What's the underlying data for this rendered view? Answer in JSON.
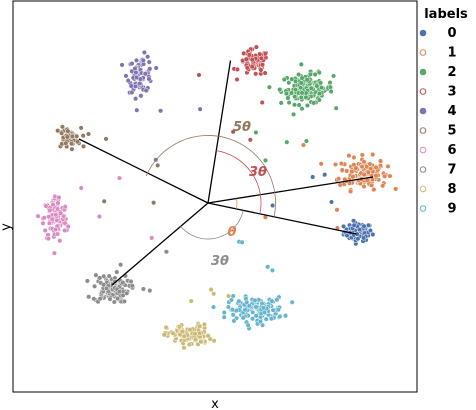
{
  "chart_data": {
    "type": "scatter",
    "xlabel": "x",
    "ylabel": "y",
    "legend_title": "labels",
    "legend_position": "outside-right",
    "ticks_visible": false,
    "series": [
      {
        "name": "0",
        "color": "#4c72b0",
        "marker": "filled",
        "points": [
          [
            300,
            -58
          ]
        ],
        "spread": [
          14,
          9
        ],
        "count": 80
      },
      {
        "name": "1",
        "color": "#dd8452",
        "marker": "open",
        "points": [
          [
            310,
            60
          ]
        ],
        "spread": [
          24,
          16
        ],
        "count": 140
      },
      {
        "name": "2",
        "color": "#55a868",
        "marker": "filled",
        "points": [
          [
            198,
            228
          ]
        ],
        "spread": [
          26,
          15
        ],
        "count": 150
      },
      {
        "name": "3",
        "color": "#c44e52",
        "marker": "open",
        "points": [
          [
            92,
            280
          ]
        ],
        "spread": [
          15,
          13
        ],
        "count": 70
      },
      {
        "name": "4",
        "color": "#8172b2",
        "marker": "filled",
        "points": [
          [
            -135,
            258
          ]
        ],
        "spread": [
          13,
          18
        ],
        "count": 80
      },
      {
        "name": "5",
        "color": "#937860",
        "marker": "open",
        "points": [
          [
            -280,
            130
          ]
        ],
        "spread": [
          13,
          10
        ],
        "count": 50
      },
      {
        "name": "6",
        "color": "#da8bc3",
        "marker": "open",
        "points": [
          [
            -305,
            -32
          ]
        ],
        "spread": [
          12,
          24
        ],
        "count": 110
      },
      {
        "name": "7",
        "color": "#8c8c8c",
        "marker": "open",
        "points": [
          [
            -194,
            -171
          ]
        ],
        "spread": [
          18,
          14
        ],
        "count": 110
      },
      {
        "name": "8",
        "color": "#ccb974",
        "marker": "open",
        "points": [
          [
            -38,
            -265
          ]
        ],
        "spread": [
          22,
          11
        ],
        "count": 100
      },
      {
        "name": "9",
        "color": "#64b5cd",
        "marker": "open",
        "points": [
          [
            95,
            -213
          ]
        ],
        "spread": [
          28,
          12
        ],
        "count": 140
      }
    ],
    "origin": [
      0,
      0
    ],
    "rays": [
      {
        "to": [
          330,
          52
        ]
      },
      {
        "to": [
          297,
          -62
        ]
      },
      {
        "to": [
          45,
          285
        ]
      },
      {
        "to": [
          -258,
          128
        ]
      },
      {
        "to": [
          -193,
          -165
        ]
      }
    ],
    "angle_annotations": [
      {
        "label": "θ",
        "color": "#dd8452",
        "radius": 58
      },
      {
        "label": "3θ",
        "color": "#c44e52",
        "radius": 106
      },
      {
        "label": "5θ",
        "color": "#937860",
        "radius": 135
      },
      {
        "label": "3θ",
        "color": "#8c8c8c",
        "radius": 72
      }
    ]
  }
}
